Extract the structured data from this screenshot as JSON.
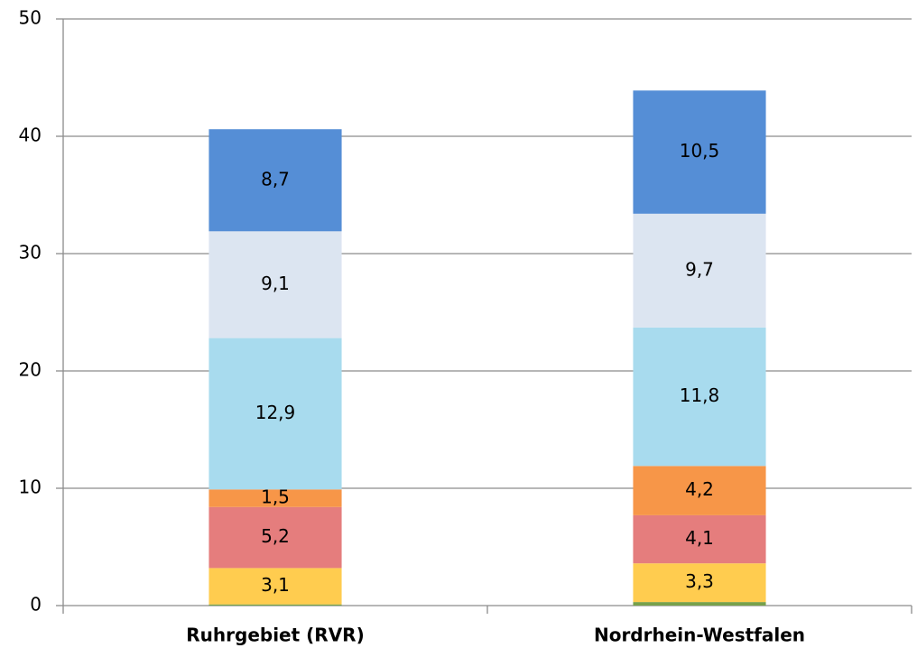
{
  "chart_data": {
    "type": "stacked_bar",
    "categories": [
      "Ruhrgebiet (RVR)",
      "Nordrhein-Westfalen"
    ],
    "series": [
      {
        "color": "#77a14a",
        "values": [
          0.1,
          0.3
        ],
        "value_labels": [
          null,
          null
        ]
      },
      {
        "color": "#ffcc4f",
        "values": [
          3.1,
          3.3
        ],
        "value_labels": [
          "3,1",
          "3,3"
        ]
      },
      {
        "color": "#e57d7d",
        "values": [
          5.2,
          4.1
        ],
        "value_labels": [
          "5,2",
          "4,1"
        ]
      },
      {
        "color": "#f79648",
        "values": [
          1.5,
          4.2
        ],
        "value_labels": [
          "1,5",
          "4,2"
        ]
      },
      {
        "color": "#a8dbee",
        "values": [
          12.9,
          11.8
        ],
        "value_labels": [
          "12,9",
          "11,8"
        ]
      },
      {
        "color": "#dce5f1",
        "values": [
          9.1,
          9.7
        ],
        "value_labels": [
          "9,1",
          "9,7"
        ]
      },
      {
        "color": "#558ed6",
        "values": [
          8.7,
          10.5
        ],
        "value_labels": [
          "8,7",
          "10,5"
        ]
      }
    ],
    "ylim": [
      0,
      50
    ],
    "yticks": [
      0,
      10,
      20,
      30,
      40,
      50
    ],
    "grid": true
  }
}
